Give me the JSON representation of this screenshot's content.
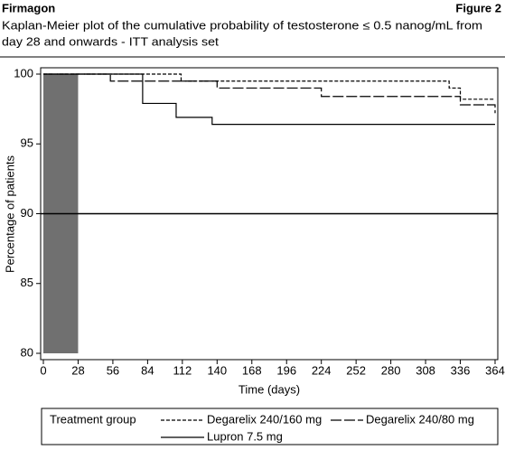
{
  "chart_data": {
    "type": "step",
    "header": "Firmagon",
    "figure_label": "Figure 2",
    "subtitle_lines": [
      "Kaplan-Meier plot of the cumulative probability of testosterone ≤ 0.5 nanog/mL from",
      "day 28 and onwards - ITT analysis set"
    ],
    "xlabel": "Time (days)",
    "ylabel": "Percentage of patients",
    "xlim": [
      0,
      364
    ],
    "ylim": [
      80,
      100
    ],
    "xticks": [
      0,
      28,
      56,
      84,
      112,
      140,
      168,
      196,
      224,
      252,
      280,
      308,
      336,
      364
    ],
    "yticks": [
      80,
      85,
      90,
      95,
      100
    ],
    "shaded_region": [
      0,
      28
    ],
    "shaded_color": "#707070",
    "reference_line": 90,
    "legend_title": "Treatment group",
    "legend": "bottom",
    "series": [
      {
        "name": "Degarelix 240/160 mg",
        "color": "#000000",
        "dash": "4,2",
        "x": [
          0,
          111,
          327,
          336,
          364
        ],
        "values": [
          100,
          99.5,
          99.0,
          98.2,
          98.2
        ]
      },
      {
        "name": "Degarelix 240/80 mg",
        "color": "#000000",
        "dash": "12,3",
        "x": [
          0,
          54,
          140,
          224,
          336,
          364
        ],
        "values": [
          100,
          99.5,
          99.0,
          98.4,
          97.8,
          97.2
        ]
      },
      {
        "name": "Lupron 7.5 mg",
        "color": "#000000",
        "dash": "",
        "x": [
          0,
          80,
          107,
          136,
          364
        ],
        "values": [
          100,
          97.9,
          96.9,
          96.4,
          96.4
        ]
      }
    ]
  }
}
